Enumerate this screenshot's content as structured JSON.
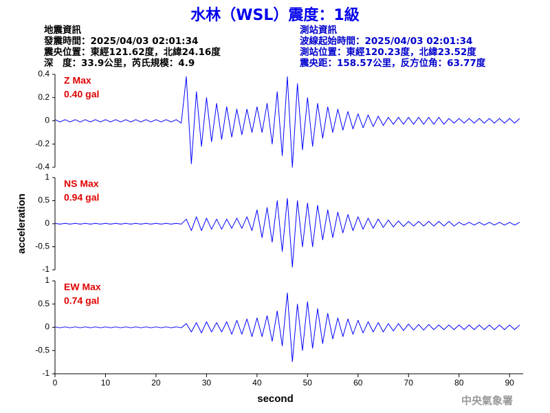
{
  "title": "水林（WSL）震度：1級",
  "header": {
    "left": [
      "地震資訊",
      "發震時間：2025/04/03 02:01:34",
      "震央位置：東經121.62度，北緯24.16度",
      "深　度：33.9公里，芮氏規模：4.9"
    ],
    "right": [
      "測站資訊",
      "波線起始時間：2025/04/03 02:01:34",
      "測站位置：東經120.23度，北緯23.52度",
      "震央距：158.57公里，反方位角：63.77度"
    ]
  },
  "ylabel": "acceleration",
  "footer": "中央氣象署",
  "chart_data": [
    {
      "type": "line",
      "label": "Z Max",
      "max_label": "0.40 gal",
      "x": [
        0,
        1,
        2,
        3,
        4,
        5,
        6,
        7,
        8,
        9,
        10,
        11,
        12,
        13,
        14,
        15,
        16,
        17,
        18,
        19,
        20,
        21,
        22,
        23,
        24,
        25,
        26,
        27,
        28,
        29,
        30,
        31,
        32,
        33,
        34,
        35,
        36,
        37,
        38,
        39,
        40,
        41,
        42,
        43,
        44,
        45,
        46,
        47,
        48,
        49,
        50,
        51,
        52,
        53,
        54,
        55,
        56,
        57,
        58,
        59,
        60,
        61,
        62,
        63,
        64,
        65,
        66,
        67,
        68,
        69,
        70,
        71,
        72,
        73,
        74,
        75,
        76,
        77,
        78,
        79,
        80,
        81,
        82,
        83,
        84,
        85,
        86,
        87,
        88,
        89,
        90,
        91,
        92
      ],
      "series": [
        {
          "color": "#0000ff",
          "values": [
            0.01,
            -0.01,
            0.01,
            -0.01,
            0.01,
            -0.01,
            0.01,
            -0.01,
            0.01,
            -0.01,
            0.01,
            -0.01,
            0.01,
            -0.01,
            0.01,
            -0.01,
            0.01,
            -0.01,
            0.01,
            -0.01,
            0.01,
            -0.01,
            0.01,
            -0.01,
            0.01,
            -0.02,
            0.38,
            -0.37,
            0.25,
            -0.22,
            0.2,
            -0.18,
            0.15,
            -0.16,
            0.12,
            -0.14,
            0.1,
            -0.12,
            0.1,
            -0.1,
            0.12,
            -0.1,
            0.15,
            -0.2,
            0.25,
            -0.3,
            0.38,
            -0.4,
            0.32,
            -0.25,
            0.2,
            -0.22,
            0.15,
            -0.15,
            0.12,
            -0.1,
            0.1,
            -0.08,
            0.08,
            -0.07,
            0.06,
            -0.06,
            0.05,
            -0.05,
            0.04,
            -0.04,
            0.03,
            -0.03,
            0.03,
            -0.03,
            0.03,
            -0.03,
            0.03,
            -0.03,
            0.03,
            -0.03,
            0.03,
            -0.03,
            0.02,
            -0.02,
            0.02,
            -0.02,
            0.02,
            -0.02,
            0.02,
            -0.02,
            0.02,
            -0.02,
            0.02,
            -0.02,
            0.02,
            -0.02,
            0.02
          ]
        }
      ],
      "xlim": [
        0,
        92.7
      ],
      "ylim": [
        -0.4,
        0.4
      ],
      "yticks": [
        -0.4,
        -0.2,
        0,
        0.2,
        0.4
      ]
    },
    {
      "type": "line",
      "label": "NS Max",
      "max_label": "0.94 gal",
      "x": [
        0,
        1,
        2,
        3,
        4,
        5,
        6,
        7,
        8,
        9,
        10,
        11,
        12,
        13,
        14,
        15,
        16,
        17,
        18,
        19,
        20,
        21,
        22,
        23,
        24,
        25,
        26,
        27,
        28,
        29,
        30,
        31,
        32,
        33,
        34,
        35,
        36,
        37,
        38,
        39,
        40,
        41,
        42,
        43,
        44,
        45,
        46,
        47,
        48,
        49,
        50,
        51,
        52,
        53,
        54,
        55,
        56,
        57,
        58,
        59,
        60,
        61,
        62,
        63,
        64,
        65,
        66,
        67,
        68,
        69,
        70,
        71,
        72,
        73,
        74,
        75,
        76,
        77,
        78,
        79,
        80,
        81,
        82,
        83,
        84,
        85,
        86,
        87,
        88,
        89,
        90,
        91,
        92
      ],
      "series": [
        {
          "color": "#0000ff",
          "values": [
            0.01,
            -0.01,
            0.01,
            -0.01,
            0.01,
            -0.01,
            0.01,
            -0.01,
            0.01,
            -0.01,
            0.01,
            -0.01,
            0.01,
            -0.01,
            0.01,
            -0.01,
            0.01,
            -0.01,
            0.01,
            -0.01,
            0.01,
            -0.01,
            0.01,
            -0.01,
            0.01,
            -0.01,
            0.1,
            -0.15,
            0.15,
            -0.15,
            0.12,
            -0.12,
            0.1,
            -0.12,
            0.1,
            -0.1,
            0.12,
            -0.1,
            0.15,
            -0.15,
            0.3,
            -0.3,
            0.35,
            -0.4,
            0.5,
            -0.6,
            0.55,
            -0.94,
            0.5,
            -0.5,
            0.45,
            -0.5,
            0.4,
            -0.35,
            0.3,
            -0.3,
            0.25,
            -0.2,
            0.2,
            -0.15,
            0.15,
            -0.12,
            0.12,
            -0.1,
            0.1,
            -0.08,
            0.08,
            -0.07,
            0.06,
            -0.06,
            0.05,
            -0.05,
            0.05,
            -0.05,
            0.05,
            -0.05,
            0.05,
            -0.05,
            0.05,
            -0.05,
            0.03,
            -0.03,
            0.03,
            -0.03,
            0.03,
            -0.03,
            0.03,
            -0.03,
            0.03,
            -0.03,
            0.03,
            -0.03,
            0.03
          ]
        }
      ],
      "xlim": [
        0,
        92.7
      ],
      "ylim": [
        -1,
        1
      ],
      "yticks": [
        -1,
        -0.5,
        0,
        0.5,
        1
      ]
    },
    {
      "type": "line",
      "label": "EW Max",
      "max_label": "0.74 gal",
      "x": [
        0,
        1,
        2,
        3,
        4,
        5,
        6,
        7,
        8,
        9,
        10,
        11,
        12,
        13,
        14,
        15,
        16,
        17,
        18,
        19,
        20,
        21,
        22,
        23,
        24,
        25,
        26,
        27,
        28,
        29,
        30,
        31,
        32,
        33,
        34,
        35,
        36,
        37,
        38,
        39,
        40,
        41,
        42,
        43,
        44,
        45,
        46,
        47,
        48,
        49,
        50,
        51,
        52,
        53,
        54,
        55,
        56,
        57,
        58,
        59,
        60,
        61,
        62,
        63,
        64,
        65,
        66,
        67,
        68,
        69,
        70,
        71,
        72,
        73,
        74,
        75,
        76,
        77,
        78,
        79,
        80,
        81,
        82,
        83,
        84,
        85,
        86,
        87,
        88,
        89,
        90,
        91,
        92
      ],
      "series": [
        {
          "color": "#0000ff",
          "values": [
            0.01,
            -0.01,
            0.01,
            -0.01,
            0.01,
            -0.01,
            0.01,
            -0.01,
            0.01,
            -0.01,
            0.01,
            -0.01,
            0.01,
            -0.01,
            0.01,
            -0.01,
            0.01,
            -0.01,
            0.01,
            -0.01,
            0.01,
            -0.01,
            0.01,
            -0.01,
            0.01,
            -0.01,
            0.08,
            -0.1,
            0.1,
            -0.12,
            0.12,
            -0.1,
            0.1,
            -0.1,
            0.12,
            -0.15,
            0.15,
            -0.15,
            0.18,
            -0.2,
            0.2,
            -0.2,
            0.25,
            -0.3,
            0.35,
            -0.4,
            0.74,
            -0.74,
            0.5,
            -0.5,
            0.55,
            -0.45,
            0.4,
            -0.35,
            0.3,
            -0.25,
            0.2,
            -0.2,
            0.18,
            -0.15,
            0.15,
            -0.12,
            0.12,
            -0.1,
            0.1,
            -0.1,
            0.08,
            -0.08,
            0.08,
            -0.07,
            0.07,
            -0.06,
            0.06,
            -0.06,
            0.06,
            -0.05,
            0.05,
            -0.05,
            0.05,
            -0.05,
            0.05,
            -0.05,
            0.05,
            -0.05,
            0.05,
            -0.05,
            0.05,
            -0.05,
            0.05,
            -0.05,
            0.05,
            -0.05,
            0.05
          ]
        }
      ],
      "xlim": [
        0,
        92.7
      ],
      "ylim": [
        -1,
        1
      ],
      "yticks": [
        -1,
        -0.5,
        0,
        0.5,
        1
      ],
      "xticks": [
        0,
        10,
        20,
        30,
        40,
        50,
        60,
        70,
        80,
        90
      ],
      "xlabel": "second"
    }
  ]
}
